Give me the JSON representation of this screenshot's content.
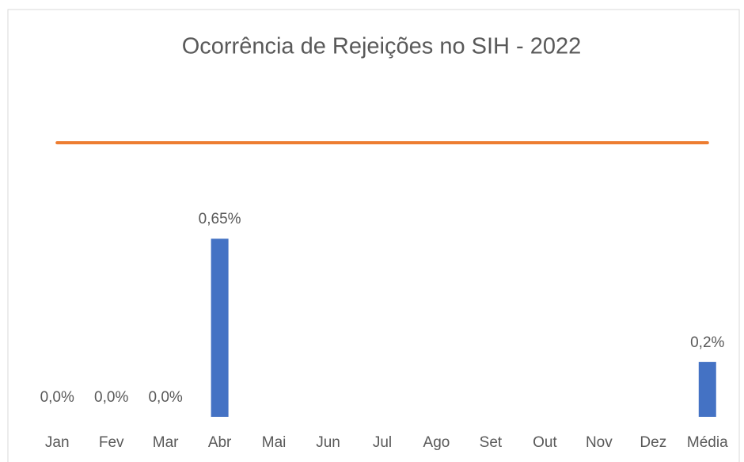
{
  "chart_data": {
    "type": "bar",
    "title": "Ocorrência de Rejeições no SIH - 2022",
    "categories": [
      "Jan",
      "Fev",
      "Mar",
      "Abr",
      "Mai",
      "Jun",
      "Jul",
      "Ago",
      "Set",
      "Out",
      "Nov",
      "Dez",
      "Média"
    ],
    "series": [
      {
        "type": "bar",
        "color": "#4472c4",
        "values": [
          0,
          0,
          0,
          0.65,
          null,
          null,
          null,
          null,
          null,
          null,
          null,
          null,
          0.2
        ],
        "value_labels": [
          "0,0%",
          "0,0%",
          "0,0%",
          "0,65%",
          null,
          null,
          null,
          null,
          null,
          null,
          null,
          null,
          "0,2%"
        ]
      },
      {
        "type": "line",
        "color": "#ed7d31",
        "values": [
          1,
          1,
          1,
          1,
          1,
          1,
          1,
          1,
          1,
          1,
          1,
          1,
          1
        ]
      }
    ],
    "ylim": [
      0,
      1.2
    ]
  }
}
